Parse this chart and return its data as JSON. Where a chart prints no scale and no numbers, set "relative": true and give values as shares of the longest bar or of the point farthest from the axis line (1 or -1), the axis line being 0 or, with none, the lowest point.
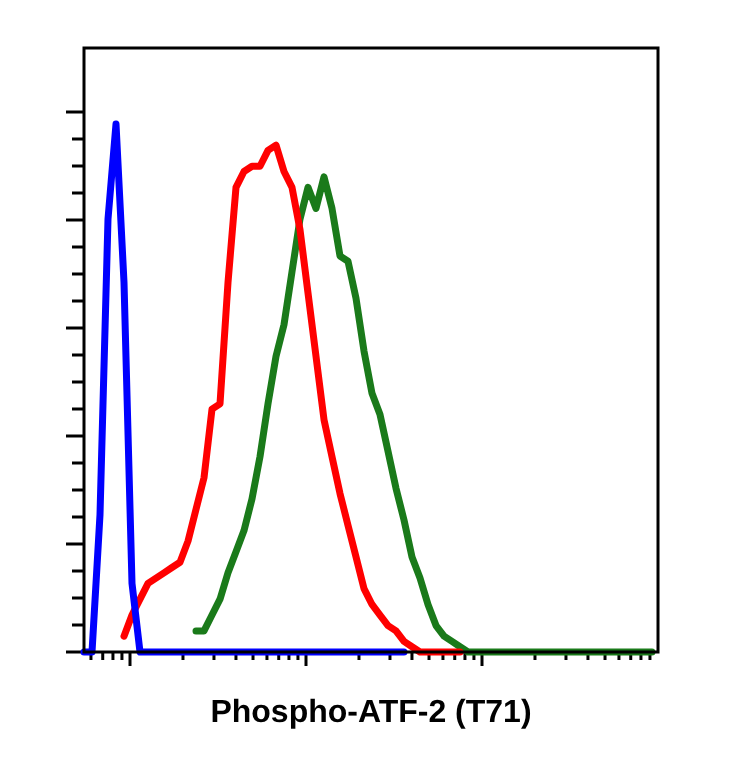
{
  "chart_data": {
    "type": "line",
    "relative": true,
    "xlabel": "Phospho-ATF-2 (T71)",
    "grid": false,
    "marker": "none",
    "line_style": "solid",
    "categories": [
      null,
      null,
      null,
      null,
      null,
      null,
      null,
      null,
      null,
      null,
      null,
      null,
      null,
      null,
      null,
      null,
      null,
      null,
      null,
      null,
      null,
      null,
      null,
      null,
      null,
      null,
      null,
      null,
      null,
      null,
      null,
      null,
      null,
      null,
      null,
      null,
      null,
      null,
      null,
      null,
      null,
      null,
      null,
      null,
      null,
      null,
      null,
      null,
      null,
      null,
      null,
      null,
      null,
      null,
      null,
      null,
      null,
      null,
      null,
      null,
      null,
      null,
      null,
      null,
      null,
      null,
      null,
      null,
      null,
      null,
      null,
      null
    ],
    "series": [
      {
        "color": "#1a7a1a",
        "values": [
          null,
          null,
          null,
          null,
          null,
          null,
          null,
          null,
          null,
          null,
          null,
          null,
          null,
          null,
          0.04,
          0.04,
          0.07,
          0.1,
          0.15,
          0.19,
          0.23,
          0.29,
          0.37,
          0.47,
          0.56,
          0.62,
          0.72,
          0.82,
          0.88,
          0.84,
          0.9,
          0.84,
          0.75,
          0.74,
          0.67,
          0.57,
          0.49,
          0.45,
          0.38,
          0.31,
          0.25,
          0.18,
          0.14,
          0.09,
          0.05,
          0.03,
          0.02,
          0.01,
          0,
          0,
          0,
          0,
          0,
          0,
          0,
          0,
          0,
          0,
          0,
          0,
          0,
          0,
          0,
          0,
          0,
          0,
          0,
          0,
          0,
          0,
          0,
          0
        ]
      },
      {
        "color": "#ff0000",
        "values": [
          null,
          null,
          null,
          null,
          null,
          0.03,
          0.07,
          0.1,
          0.13,
          0.14,
          0.15,
          0.16,
          0.17,
          0.21,
          0.27,
          0.33,
          0.46,
          0.47,
          0.7,
          0.88,
          0.91,
          0.92,
          0.92,
          0.95,
          0.96,
          0.91,
          0.88,
          0.8,
          0.68,
          0.56,
          0.44,
          0.37,
          0.3,
          0.24,
          0.18,
          0.12,
          0.09,
          0.07,
          0.05,
          0.04,
          0.02,
          0.01,
          0,
          0,
          0,
          0,
          0,
          0,
          null,
          null,
          null,
          null,
          null,
          null,
          null,
          null,
          null,
          null,
          null,
          null,
          null,
          null,
          null,
          null,
          null,
          null,
          null,
          null,
          null,
          null,
          null,
          null
        ]
      },
      {
        "color": "#0000ff",
        "values": [
          0,
          0,
          0.26,
          0.82,
          1,
          0.7,
          0.13,
          0,
          0,
          0,
          0,
          0,
          0,
          0,
          0,
          0,
          0,
          0,
          0,
          0,
          0,
          0,
          0,
          0,
          0,
          0,
          0,
          0,
          0,
          0,
          0,
          0,
          0,
          0,
          0,
          0,
          0,
          0,
          0,
          0,
          0,
          null,
          null,
          null,
          null,
          null,
          null,
          null,
          null,
          null,
          null,
          null,
          null,
          null,
          null,
          null,
          null,
          null,
          null,
          null,
          null,
          null,
          null,
          null,
          null,
          null,
          null,
          null,
          null,
          null,
          null,
          null
        ]
      }
    ]
  }
}
